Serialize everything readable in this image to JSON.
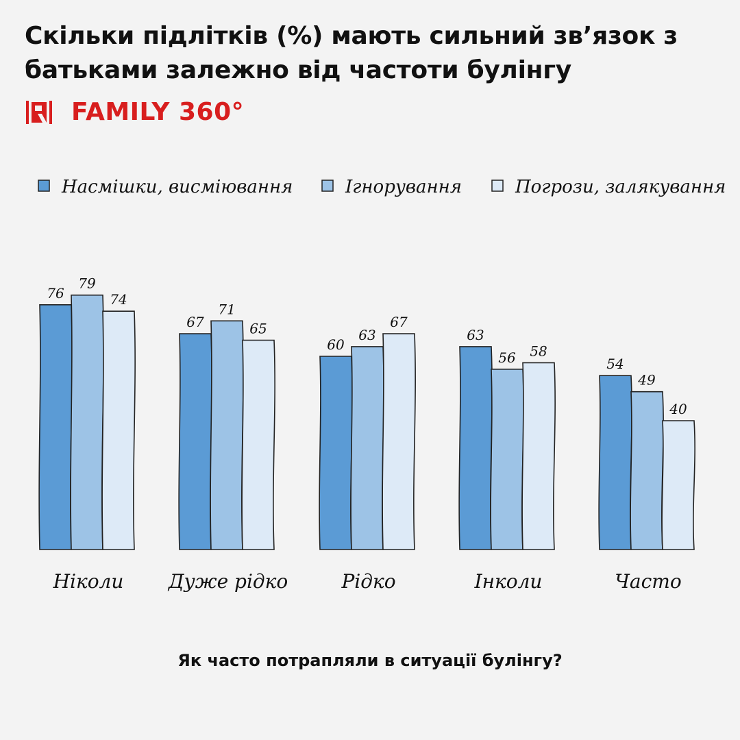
{
  "title": "Скільки підлітків (%) мають сильний зв’язок з батьками залежно від частоти булінгу",
  "brand": {
    "logo_icon": "r-bracket-logo-icon",
    "name": "FAMILY 360°",
    "color": "#d81e1e"
  },
  "chart_data": {
    "type": "bar",
    "title": "Скільки підлітків (%) мають сильний зв’язок з батьками залежно від частоти булінгу",
    "xlabel": "Як часто потрапляли в ситуації булінгу?",
    "ylabel": "",
    "ylim": [
      0,
      100
    ],
    "grid": false,
    "legend": "top",
    "categories": [
      "Ніколи",
      "Дуже рідко",
      "Рідко",
      "Інколи",
      "Часто"
    ],
    "series": [
      {
        "name": "Насмішки, висміювання",
        "color": "#5b9bd5",
        "values": [
          76,
          67,
          60,
          63,
          54
        ]
      },
      {
        "name": "Ігнорування",
        "color": "#9dc3e6",
        "values": [
          79,
          71,
          63,
          56,
          49
        ]
      },
      {
        "name": "Погрози, залякування",
        "color": "#ddeaf7",
        "values": [
          74,
          65,
          67,
          58,
          40
        ]
      }
    ]
  }
}
